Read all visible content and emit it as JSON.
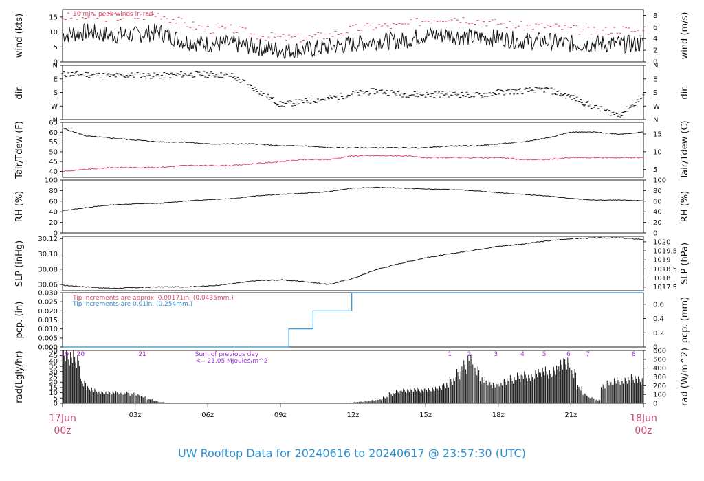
{
  "title": "UW Rooftop Data for 20240616  to  20240617 @ 23:57:30  (UTC)",
  "colors": {
    "title": "#2a8fd0",
    "date": "#d0476b",
    "red": "#e0456a",
    "blue": "#2a8fd0",
    "purple": "#9b30d9",
    "black": "#111111"
  },
  "time_axis": {
    "ticks": [
      {
        "hour": 0,
        "label": ""
      },
      {
        "hour": 3,
        "label": "03z"
      },
      {
        "hour": 6,
        "label": "06z"
      },
      {
        "hour": 9,
        "label": "09z"
      },
      {
        "hour": 12,
        "label": "12z"
      },
      {
        "hour": 15,
        "label": "15z"
      },
      {
        "hour": 18,
        "label": "18z"
      },
      {
        "hour": 21,
        "label": "21z"
      },
      {
        "hour": 24,
        "label": ""
      }
    ],
    "start_day": "17Jun",
    "start_time": "00z",
    "end_day": "18Jun",
    "end_time": "00z"
  },
  "panels": {
    "wind": {
      "ylabel_left": "wind (kts)",
      "ylabel_right": "wind (m/s)",
      "ticks_left": [
        "0",
        "5",
        "10",
        "15"
      ],
      "ticks_right": [
        "0",
        "2",
        "4",
        "6",
        "8"
      ],
      "note": "10 min. peak winds in red"
    },
    "dir": {
      "ylabel_left": "dir.",
      "ylabel_right": "dir.",
      "ticks_left": [
        "N",
        "W",
        "S",
        "E",
        "N"
      ],
      "ticks_right": [
        "N",
        "W",
        "S",
        "E",
        "N"
      ]
    },
    "temp": {
      "ylabel_left": "Tair/Tdew (F)",
      "ylabel_right": "Tair/Tdew (C)",
      "ticks_left": [
        "40",
        "45",
        "50",
        "55",
        "60",
        "65"
      ],
      "ticks_right": [
        "5",
        "10",
        "15"
      ]
    },
    "rh": {
      "ylabel_left": "RH (%)",
      "ylabel_right": "RH (%)",
      "ticks_left": [
        "0",
        "20",
        "40",
        "60",
        "80",
        "100"
      ],
      "ticks_right": [
        "0",
        "20",
        "40",
        "60",
        "80",
        "100"
      ]
    },
    "slp": {
      "ylabel_left": "SLP (inHg)",
      "ylabel_right": "SLP (hPa)",
      "ticks_left": [
        "30.06",
        "30.08",
        "30.10",
        "30.12"
      ],
      "ticks_right": [
        "1017.5",
        "1018",
        "1018.5",
        "1019",
        "1019.5",
        "1020"
      ]
    },
    "pcp": {
      "ylabel_left": "pcp. (in)",
      "ylabel_right": "pcp. (mm)",
      "ticks_left": [
        "0.000",
        "0.005",
        "0.010",
        "0.015",
        "0.020",
        "0.025",
        "0.030"
      ],
      "ticks_right": [
        "0",
        "0.2",
        "0.4",
        "0.6"
      ],
      "note1": "Tip increments are approx. 0.00171in. (0.0435mm.)",
      "note2": "Tip increments are 0.01in. (0.254mm.)"
    },
    "rad": {
      "ylabel_left": "rad(Lgly/hr)",
      "ylabel_right": "rad (W/m^2)",
      "ticks_left": [
        "0",
        "5",
        "10",
        "15",
        "20",
        "25",
        "30",
        "35",
        "40",
        "45",
        "50"
      ],
      "ticks_right": [
        "0",
        "100",
        "200",
        "300",
        "400",
        "500",
        "600"
      ],
      "sum_line1": "Sum of previous day",
      "sum_line2": "<-- 21.05 MJoules/m^2",
      "hour_marks": [
        {
          "hour": 0.1,
          "label": "19"
        },
        {
          "hour": 0.75,
          "label": "20"
        },
        {
          "hour": 3.3,
          "label": "21"
        },
        {
          "hour": 16.0,
          "label": "1"
        },
        {
          "hour": 16.8,
          "label": "2"
        },
        {
          "hour": 17.9,
          "label": "3"
        },
        {
          "hour": 19.0,
          "label": "4"
        },
        {
          "hour": 19.9,
          "label": "5"
        },
        {
          "hour": 20.9,
          "label": "6"
        },
        {
          "hour": 21.7,
          "label": "7"
        },
        {
          "hour": 23.6,
          "label": "8"
        }
      ]
    }
  },
  "chart_data": [
    {
      "type": "line",
      "panel": "wind",
      "xlabel": "",
      "ylabel": "wind (kts)",
      "ylim": [
        0,
        17.5
      ],
      "series": [
        {
          "name": "",
          "x": [
            0,
            1,
            2,
            3,
            4,
            5,
            6,
            7,
            8,
            9,
            10,
            11,
            12,
            13,
            14,
            15,
            16,
            17,
            18,
            19,
            20,
            21,
            22,
            23,
            24
          ],
          "values": [
            9,
            10,
            9,
            9,
            10,
            7,
            6,
            6,
            5,
            4,
            4,
            5,
            6,
            7,
            7,
            9,
            9,
            8,
            8,
            7,
            7,
            6,
            6,
            6,
            6
          ]
        },
        {
          "name": "10 min. peak winds in red",
          "x": [
            0,
            1,
            2,
            3,
            4,
            5,
            6,
            7,
            8,
            9,
            10,
            11,
            12,
            13,
            14,
            15,
            16,
            17,
            18,
            19,
            20,
            21,
            22,
            23,
            24
          ],
          "values": [
            15,
            15,
            15,
            15,
            16,
            13,
            11,
            11,
            9,
            8,
            8,
            9,
            11,
            12,
            12,
            14,
            15,
            14,
            13,
            12,
            12,
            11,
            10,
            11,
            10
          ]
        }
      ]
    },
    {
      "type": "scatter",
      "panel": "dir",
      "ylabel": "dir.",
      "ylim": [
        0,
        360
      ],
      "x": [
        0,
        1,
        2,
        3,
        4,
        5,
        6,
        7,
        8,
        9,
        10,
        11,
        12,
        13,
        14,
        15,
        16,
        17,
        18,
        19,
        20,
        21,
        22,
        23,
        24
      ],
      "values": [
        300,
        300,
        290,
        295,
        290,
        300,
        300,
        290,
        200,
        100,
        120,
        140,
        170,
        190,
        170,
        165,
        170,
        160,
        180,
        190,
        200,
        150,
        80,
        30,
        150
      ]
    },
    {
      "type": "line",
      "panel": "temp",
      "ylabel": "Tair/Tdew (F)",
      "ylim": [
        37,
        65
      ],
      "series": [
        {
          "name": "",
          "x": [
            0,
            1,
            2,
            3,
            4,
            5,
            6,
            7,
            8,
            9,
            10,
            11,
            12,
            13,
            14,
            15,
            16,
            17,
            18,
            19,
            20,
            21,
            22,
            23,
            24
          ],
          "values": [
            62,
            58,
            57,
            56,
            55,
            55,
            54,
            54,
            54,
            53,
            53,
            52,
            52,
            52,
            52,
            52,
            53,
            53,
            54,
            55,
            57,
            60,
            60,
            59,
            60
          ]
        },
        {
          "name": "",
          "x": [
            0,
            1,
            2,
            3,
            4,
            5,
            6,
            7,
            8,
            9,
            10,
            11,
            12,
            13,
            14,
            15,
            16,
            17,
            18,
            19,
            20,
            21,
            22,
            23,
            24
          ],
          "values": [
            40,
            41,
            42,
            42,
            42,
            43,
            43,
            43,
            44,
            45,
            46,
            46,
            48,
            48,
            48,
            47,
            47,
            47,
            47,
            46,
            46,
            47,
            47,
            47,
            47
          ]
        }
      ]
    },
    {
      "type": "line",
      "panel": "rh",
      "ylabel": "RH (%)",
      "ylim": [
        0,
        100
      ],
      "x": [
        0,
        1,
        2,
        3,
        4,
        5,
        6,
        7,
        8,
        9,
        10,
        11,
        12,
        13,
        14,
        15,
        16,
        17,
        18,
        19,
        20,
        21,
        22,
        23,
        24
      ],
      "values": [
        42,
        48,
        53,
        55,
        56,
        60,
        63,
        65,
        70,
        73,
        75,
        78,
        85,
        86,
        85,
        83,
        82,
        80,
        76,
        73,
        70,
        65,
        62,
        62,
        61
      ]
    },
    {
      "type": "line",
      "panel": "slp",
      "ylabel": "SLP (inHg)",
      "ylim": [
        30.052,
        30.123
      ],
      "x": [
        0,
        1,
        2,
        3,
        4,
        5,
        6,
        7,
        8,
        9,
        10,
        11,
        12,
        13,
        14,
        15,
        16,
        17,
        18,
        19,
        20,
        21,
        22,
        23,
        24
      ],
      "values": [
        30.059,
        30.057,
        30.055,
        30.056,
        30.057,
        30.057,
        30.058,
        30.061,
        30.065,
        30.066,
        30.064,
        30.06,
        30.068,
        30.08,
        30.088,
        30.095,
        30.1,
        30.105,
        30.11,
        30.113,
        30.117,
        30.12,
        30.121,
        30.121,
        30.119
      ]
    },
    {
      "type": "line",
      "panel": "pcp",
      "ylabel": "pcp. (in)",
      "ylim": [
        0,
        0.03
      ],
      "x": [
        0,
        9.35,
        9.35,
        10.35,
        10.35,
        11.95,
        11.95,
        24
      ],
      "values": [
        0,
        0,
        0.01,
        0.01,
        0.02,
        0.02,
        0.03,
        0.03
      ]
    },
    {
      "type": "bar",
      "panel": "rad",
      "ylabel": "rad(Lgly/hr)",
      "ylim": [
        0,
        50
      ],
      "x": [
        0,
        0.25,
        0.5,
        0.75,
        1,
        1.25,
        1.5,
        1.75,
        2,
        2.25,
        2.5,
        2.75,
        3,
        3.25,
        3.5,
        3.75,
        4,
        4.25,
        4.5,
        4.75,
        5,
        5.25,
        5.5,
        5.75,
        6,
        11.5,
        11.75,
        12,
        12.25,
        12.5,
        12.75,
        13,
        13.25,
        13.5,
        13.75,
        14,
        14.25,
        14.5,
        14.75,
        15,
        15.25,
        15.5,
        15.75,
        16,
        16.25,
        16.5,
        16.75,
        17,
        17.25,
        17.5,
        17.75,
        18,
        18.25,
        18.5,
        18.75,
        19,
        19.25,
        19.5,
        19.75,
        20,
        20.25,
        20.5,
        20.75,
        21,
        21.25,
        21.5,
        21.75,
        22,
        22.25,
        22.5,
        22.75,
        23,
        23.25,
        23.5,
        23.75
      ],
      "values": [
        47,
        45,
        42,
        20,
        14,
        12,
        10,
        10,
        10,
        10,
        10,
        9,
        8,
        6,
        4,
        2,
        1,
        0.5,
        0.3,
        0.2,
        0.1,
        0,
        0,
        0,
        0,
        0.3,
        0.6,
        1,
        1.5,
        2,
        3,
        4,
        6,
        9,
        11,
        12,
        12,
        13,
        12,
        13,
        14,
        15,
        18,
        22,
        28,
        35,
        40,
        30,
        22,
        20,
        18,
        20,
        22,
        23,
        25,
        26,
        24,
        28,
        30,
        28,
        32,
        38,
        40,
        30,
        15,
        8,
        5,
        3,
        16,
        20,
        22,
        22,
        23,
        24,
        22
      ]
    }
  ]
}
